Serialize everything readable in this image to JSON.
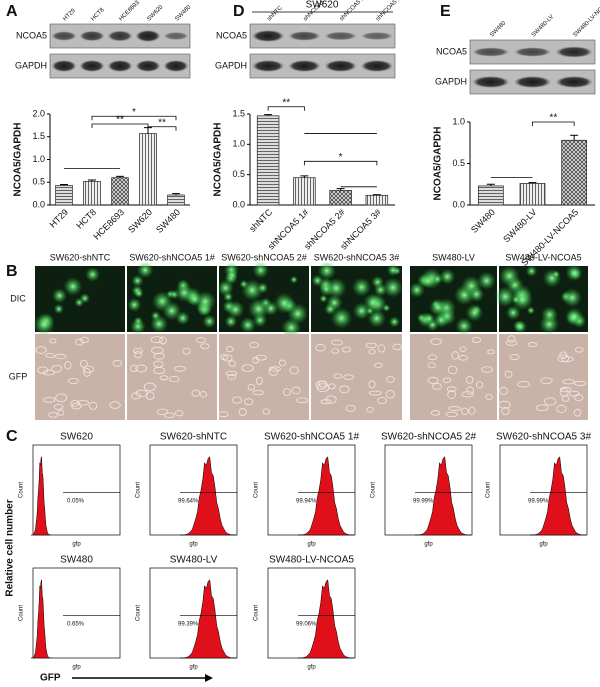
{
  "panel_labels": [
    "A",
    "D",
    "E",
    "B",
    "C"
  ],
  "blots": {
    "rows": [
      "NCOA5",
      "GAPDH"
    ],
    "group_d": "SW620"
  },
  "chart_data": [
    {
      "type": "bar",
      "ylabel": "NCOA5/GAPDH",
      "categories": [
        "HT29",
        "HCT8",
        "HCE8693",
        "SW620",
        "SW480"
      ],
      "values": [
        0.43,
        0.52,
        0.6,
        1.57,
        0.22
      ],
      "errors": [
        0.02,
        0.03,
        0.03,
        0.13,
        0.03
      ],
      "ylim": [
        0,
        2
      ],
      "yticks": [
        {
          "value": 0,
          "label": "0.0"
        },
        {
          "value": 0.5,
          "label": "0.5"
        },
        {
          "value": 1,
          "label": "1.0"
        },
        {
          "value": 1.5,
          "label": "1.5"
        },
        {
          "value": 2,
          "label": "2.0"
        }
      ],
      "significance": [
        "*",
        "**",
        "**"
      ]
    },
    {
      "type": "bar",
      "ylabel": "NCOA5/GAPDH",
      "categories": [
        "shNTC",
        "shNCOA5 1#",
        "shNCOA5 2#",
        "shNCOA5 3#"
      ],
      "values": [
        1.47,
        0.45,
        0.24,
        0.16
      ],
      "errors": [
        0.02,
        0.03,
        0.03,
        0.01
      ],
      "ylim": [
        0,
        1.5
      ],
      "yticks": [
        {
          "value": 0,
          "label": "0.0"
        },
        {
          "value": 0.5,
          "label": "0.5"
        },
        {
          "value": 1,
          "label": "1.0"
        },
        {
          "value": 1.5,
          "label": "1.5"
        }
      ],
      "significance": [
        "**",
        "*"
      ]
    },
    {
      "type": "bar",
      "ylabel": "NCOA5/GAPDH",
      "categories": [
        "SW480",
        "SW480-LV",
        "SW480-LV-NCOA5"
      ],
      "values": [
        0.23,
        0.26,
        0.78
      ],
      "errors": [
        0.02,
        0.01,
        0.06
      ],
      "ylim": [
        0,
        1
      ],
      "yticks": [
        {
          "value": 0,
          "label": "0.0"
        },
        {
          "value": 0.5,
          "label": "0.5"
        },
        {
          "value": 1,
          "label": "1.0"
        }
      ],
      "significance": [
        "**"
      ]
    }
  ],
  "panel_b": {
    "columns": [
      "SW620-shNTC",
      "SW620-shNCOA5 1#",
      "SW620-shNCOA5 2#",
      "SW620-shNCOA5 3#",
      "SW480-LV",
      "SW480-LV-NCOA5"
    ],
    "rows": [
      "DIC",
      "GFP"
    ]
  },
  "panel_c": {
    "ylabel": "Relative cell number",
    "xlabel": "GFP",
    "axis_y": "Count",
    "axis_x": "gfp",
    "plots": [
      {
        "title": "SW620",
        "percent": "0.05%"
      },
      {
        "title": "SW620-shNTC",
        "percent": "99.64%"
      },
      {
        "title": "SW620-shNCOA5 1#",
        "percent": "99.94%"
      },
      {
        "title": "SW620-shNCOA5 2#",
        "percent": "99.99%"
      },
      {
        "title": "SW620-shNCOA5 3#",
        "percent": "99.99%"
      },
      {
        "title": "SW480",
        "percent": "0.65%"
      },
      {
        "title": "SW480-LV",
        "percent": "99.39%"
      },
      {
        "title": "SW480-LV-NCOA5",
        "percent": "99.06%"
      }
    ]
  }
}
